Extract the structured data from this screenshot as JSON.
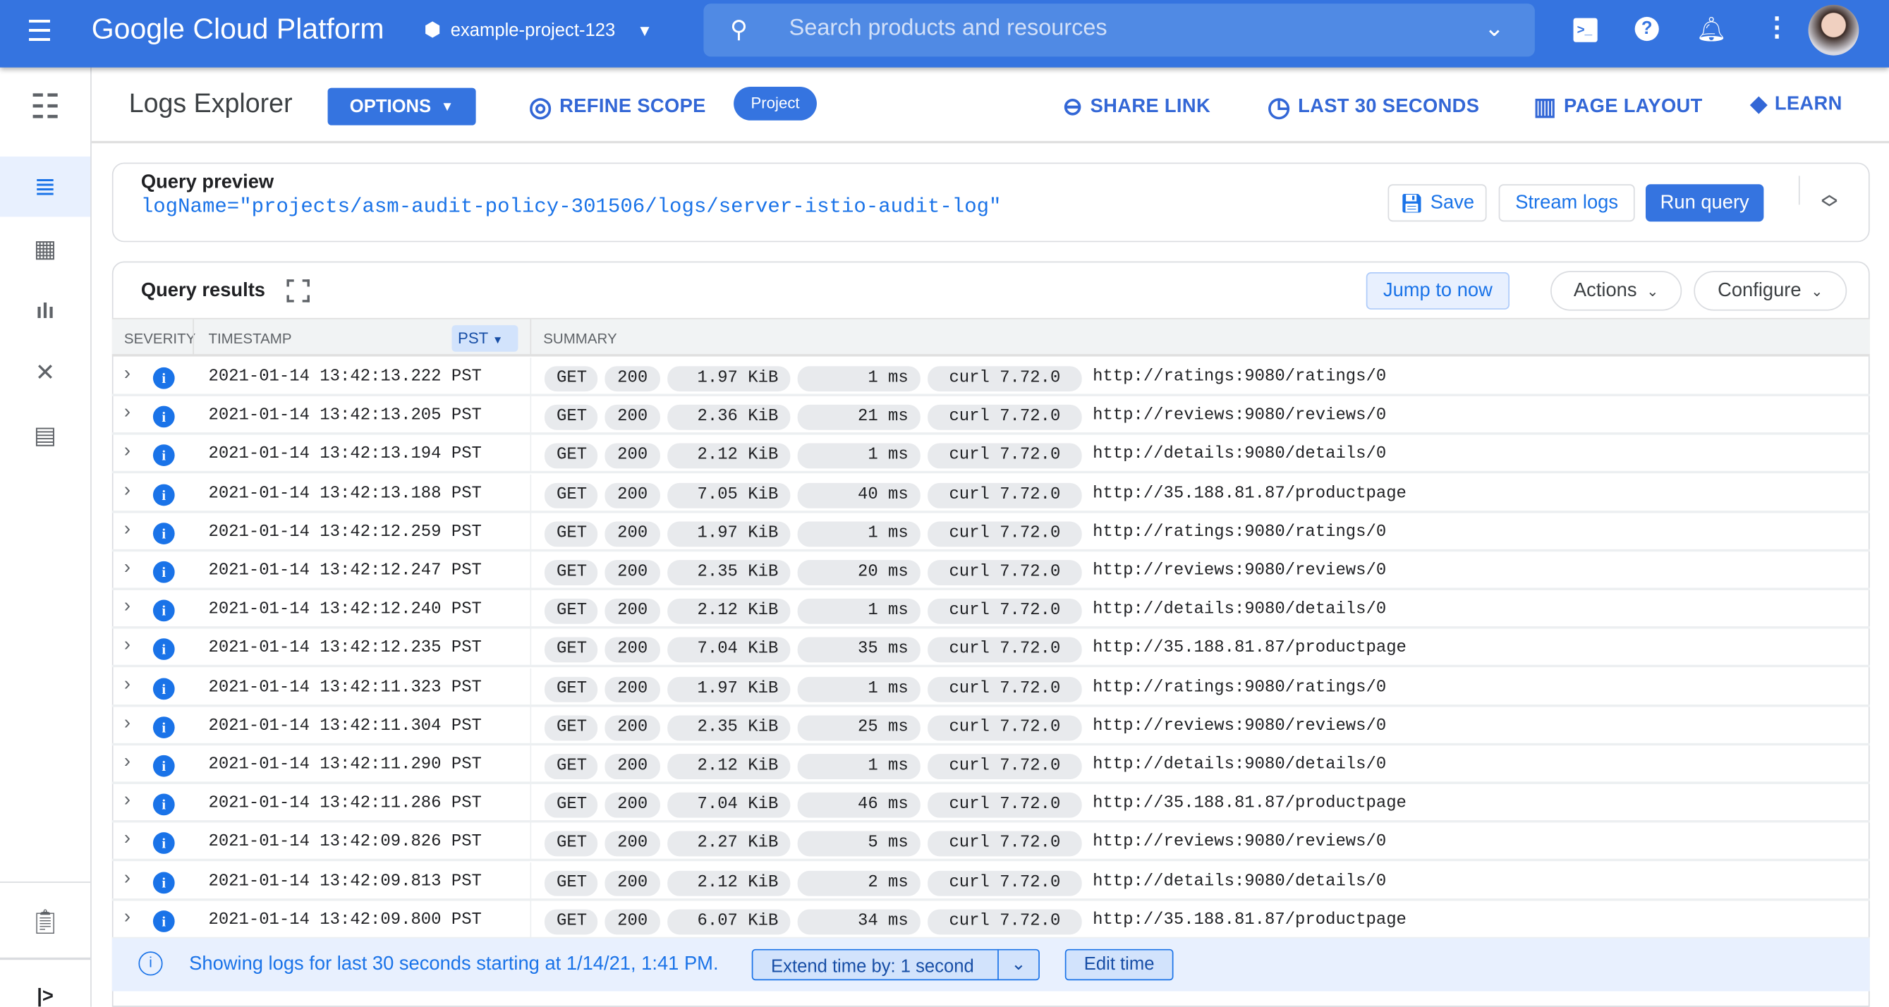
{
  "topbar": {
    "title": "Google Cloud Platform",
    "project": "example-project-123",
    "search_placeholder": "Search products and resources",
    "brand_color": "#3574e0"
  },
  "toolbar": {
    "page_title": "Logs Explorer",
    "options": "OPTIONS",
    "refine_scope": "REFINE SCOPE",
    "scope_badge": "Project",
    "share_link": "SHARE LINK",
    "time_range": "LAST 30 SECONDS",
    "page_layout": "PAGE LAYOUT",
    "learn": "LEARN"
  },
  "query_preview": {
    "label": "Query preview",
    "query": "logName=\"projects/asm-audit-policy-301506/logs/server-istio-audit-log\"",
    "save": "Save",
    "stream_logs": "Stream logs",
    "run_query": "Run query"
  },
  "results": {
    "title": "Query results",
    "jump_to_now": "Jump to now",
    "actions": "Actions",
    "configure": "Configure",
    "columns": {
      "severity": "SEVERITY",
      "timestamp": "TIMESTAMP",
      "timezone": "PST",
      "summary": "SUMMARY"
    },
    "rows": [
      {
        "ts": "2021-01-14 13:42:13.222 PST",
        "method": "GET",
        "status": "200",
        "size": "1.97 KiB",
        "latency": "1 ms",
        "agent": "curl 7.72.0",
        "url": "http://ratings:9080/ratings/0"
      },
      {
        "ts": "2021-01-14 13:42:13.205 PST",
        "method": "GET",
        "status": "200",
        "size": "2.36 KiB",
        "latency": "21 ms",
        "agent": "curl 7.72.0",
        "url": "http://reviews:9080/reviews/0"
      },
      {
        "ts": "2021-01-14 13:42:13.194 PST",
        "method": "GET",
        "status": "200",
        "size": "2.12 KiB",
        "latency": "1 ms",
        "agent": "curl 7.72.0",
        "url": "http://details:9080/details/0"
      },
      {
        "ts": "2021-01-14 13:42:13.188 PST",
        "method": "GET",
        "status": "200",
        "size": "7.05 KiB",
        "latency": "40 ms",
        "agent": "curl 7.72.0",
        "url": "http://35.188.81.87/productpage"
      },
      {
        "ts": "2021-01-14 13:42:12.259 PST",
        "method": "GET",
        "status": "200",
        "size": "1.97 KiB",
        "latency": "1 ms",
        "agent": "curl 7.72.0",
        "url": "http://ratings:9080/ratings/0"
      },
      {
        "ts": "2021-01-14 13:42:12.247 PST",
        "method": "GET",
        "status": "200",
        "size": "2.35 KiB",
        "latency": "20 ms",
        "agent": "curl 7.72.0",
        "url": "http://reviews:9080/reviews/0"
      },
      {
        "ts": "2021-01-14 13:42:12.240 PST",
        "method": "GET",
        "status": "200",
        "size": "2.12 KiB",
        "latency": "1 ms",
        "agent": "curl 7.72.0",
        "url": "http://details:9080/details/0"
      },
      {
        "ts": "2021-01-14 13:42:12.235 PST",
        "method": "GET",
        "status": "200",
        "size": "7.04 KiB",
        "latency": "35 ms",
        "agent": "curl 7.72.0",
        "url": "http://35.188.81.87/productpage"
      },
      {
        "ts": "2021-01-14 13:42:11.323 PST",
        "method": "GET",
        "status": "200",
        "size": "1.97 KiB",
        "latency": "1 ms",
        "agent": "curl 7.72.0",
        "url": "http://ratings:9080/ratings/0"
      },
      {
        "ts": "2021-01-14 13:42:11.304 PST",
        "method": "GET",
        "status": "200",
        "size": "2.35 KiB",
        "latency": "25 ms",
        "agent": "curl 7.72.0",
        "url": "http://reviews:9080/reviews/0"
      },
      {
        "ts": "2021-01-14 13:42:11.290 PST",
        "method": "GET",
        "status": "200",
        "size": "2.12 KiB",
        "latency": "1 ms",
        "agent": "curl 7.72.0",
        "url": "http://details:9080/details/0"
      },
      {
        "ts": "2021-01-14 13:42:11.286 PST",
        "method": "GET",
        "status": "200",
        "size": "7.04 KiB",
        "latency": "46 ms",
        "agent": "curl 7.72.0",
        "url": "http://35.188.81.87/productpage"
      },
      {
        "ts": "2021-01-14 13:42:09.826 PST",
        "method": "GET",
        "status": "200",
        "size": "2.27 KiB",
        "latency": "5 ms",
        "agent": "curl 7.72.0",
        "url": "http://reviews:9080/reviews/0"
      },
      {
        "ts": "2021-01-14 13:42:09.813 PST",
        "method": "GET",
        "status": "200",
        "size": "2.12 KiB",
        "latency": "2 ms",
        "agent": "curl 7.72.0",
        "url": "http://details:9080/details/0"
      },
      {
        "ts": "2021-01-14 13:42:09.800 PST",
        "method": "GET",
        "status": "200",
        "size": "6.07 KiB",
        "latency": "34 ms",
        "agent": "curl 7.72.0",
        "url": "http://35.188.81.87/productpage"
      }
    ]
  },
  "footer": {
    "message": "Showing logs for last 30 seconds starting at 1/14/21, 1:41 PM.",
    "extend": "Extend time by: 1 second",
    "edit_time": "Edit time"
  }
}
